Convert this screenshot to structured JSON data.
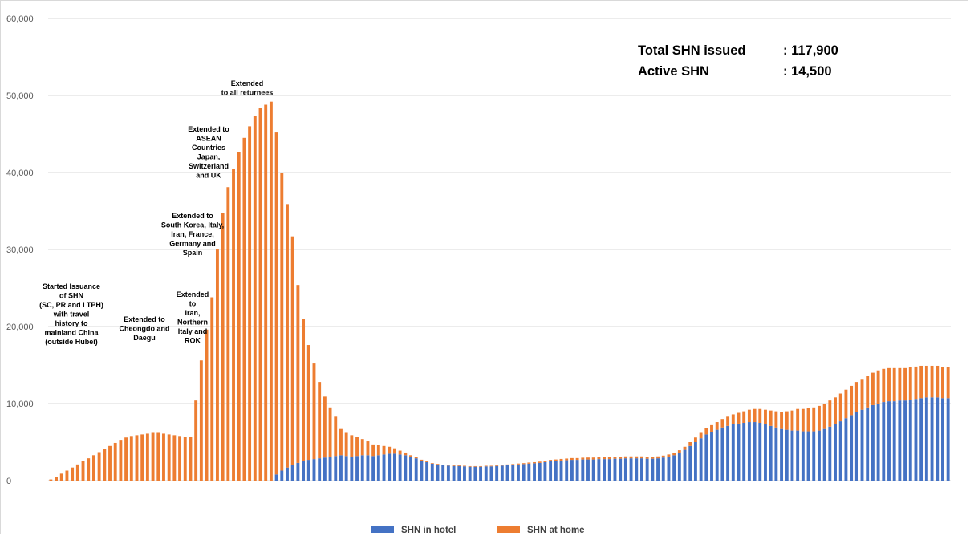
{
  "chart_data": {
    "type": "bar",
    "stacked": true,
    "title": "",
    "xlabel": "",
    "ylabel": "",
    "ylim": [
      0,
      60000
    ],
    "yticks": [
      0,
      10000,
      20000,
      30000,
      40000,
      50000,
      60000
    ],
    "ytick_labels": [
      "0",
      "10,000",
      "20,000",
      "30,000",
      "40,000",
      "50,000",
      "60,000"
    ],
    "grid": true,
    "legend_position": "bottom",
    "colors": {
      "hotel": "#4472c4",
      "home": "#ed7d31",
      "gridline": "#d9d9d9",
      "tick_label": "#595959"
    },
    "series": [
      {
        "name": "SHN in hotel",
        "values": [
          0,
          0,
          0,
          0,
          0,
          0,
          0,
          0,
          0,
          0,
          0,
          0,
          0,
          0,
          0,
          0,
          0,
          0,
          0,
          0,
          0,
          0,
          0,
          0,
          0,
          0,
          0,
          0,
          0,
          0,
          0,
          0,
          0,
          0,
          0,
          0,
          0,
          0,
          0,
          0,
          0,
          0,
          800,
          1300,
          1700,
          2000,
          2300,
          2500,
          2700,
          2800,
          2900,
          3000,
          3100,
          3200,
          3300,
          3200,
          3100,
          3200,
          3300,
          3300,
          3200,
          3300,
          3400,
          3500,
          3500,
          3400,
          3300,
          3100,
          2900,
          2600,
          2400,
          2200,
          2100,
          2000,
          1950,
          1900,
          1900,
          1850,
          1800,
          1800,
          1800,
          1850,
          1850,
          1900,
          1950,
          2000,
          2050,
          2100,
          2150,
          2200,
          2250,
          2300,
          2400,
          2500,
          2550,
          2600,
          2650,
          2700,
          2700,
          2750,
          2750,
          2750,
          2800,
          2800,
          2800,
          2850,
          2850,
          2900,
          2900,
          2900,
          2900,
          2850,
          2850,
          2900,
          3000,
          3100,
          3300,
          3600,
          4000,
          4500,
          5000,
          5500,
          6000,
          6300,
          6600,
          6900,
          7100,
          7300,
          7400,
          7500,
          7600,
          7600,
          7500,
          7300,
          7100,
          6900,
          6700,
          6600,
          6500,
          6500,
          6400,
          6400,
          6400,
          6500,
          6700,
          7000,
          7300,
          7700,
          8100,
          8500,
          8900,
          9200,
          9500,
          9800,
          10000,
          10200,
          10300,
          10300,
          10400,
          10400,
          10500,
          10600,
          10700,
          10800,
          10800,
          10800,
          10700,
          10700
        ]
      },
      {
        "name": "SHN at home",
        "values": [
          150,
          500,
          900,
          1300,
          1700,
          2100,
          2500,
          2900,
          3300,
          3700,
          4100,
          4500,
          4900,
          5300,
          5600,
          5800,
          5900,
          6000,
          6100,
          6200,
          6200,
          6100,
          6000,
          5900,
          5800,
          5700,
          5700,
          10400,
          15600,
          19600,
          23800,
          30100,
          34700,
          38100,
          40500,
          42700,
          44500,
          46000,
          47300,
          48400,
          48800,
          49200,
          44400,
          38700,
          34200,
          29700,
          23100,
          18500,
          14900,
          12400,
          9900,
          7900,
          6400,
          5100,
          3400,
          3000,
          2800,
          2500,
          2100,
          1800,
          1500,
          1300,
          1100,
          900,
          700,
          500,
          350,
          200,
          150,
          120,
          100,
          80,
          80,
          80,
          80,
          80,
          80,
          80,
          80,
          80,
          80,
          80,
          80,
          80,
          80,
          100,
          100,
          120,
          120,
          150,
          150,
          170,
          180,
          200,
          200,
          220,
          220,
          230,
          230,
          230,
          250,
          250,
          250,
          250,
          250,
          250,
          250,
          250,
          250,
          250,
          250,
          250,
          250,
          250,
          250,
          300,
          300,
          350,
          400,
          500,
          600,
          700,
          800,
          900,
          1000,
          1100,
          1200,
          1300,
          1400,
          1500,
          1600,
          1700,
          1800,
          1900,
          2000,
          2100,
          2200,
          2400,
          2600,
          2800,
          2900,
          3000,
          3100,
          3200,
          3300,
          3400,
          3500,
          3600,
          3700,
          3800,
          3900,
          4000,
          4100,
          4200,
          4300,
          4300,
          4300,
          4300,
          4200,
          4200,
          4200,
          4200,
          4200,
          4100,
          4100,
          4100,
          4000,
          4000,
          3900
        ]
      }
    ],
    "annotations": [
      {
        "lines": [
          "Started Issuance",
          "of SHN",
          "(SC, PR and LTPH)",
          "with travel",
          "history to",
          "mainland China",
          "(outside Hubei)"
        ]
      },
      {
        "lines": [
          "Extended to",
          "Cheongdo and",
          "Daegu"
        ]
      },
      {
        "lines": [
          "Extended",
          "to",
          "Iran,",
          "Northern",
          "Italy and",
          "ROK"
        ]
      },
      {
        "lines": [
          "Extended to",
          "South Korea, Italy,",
          "Iran, France,",
          "Germany and",
          "Spain"
        ]
      },
      {
        "lines": [
          "Extended to",
          "ASEAN",
          "Countries",
          "Japan,",
          "Switzerland",
          "and UK"
        ]
      },
      {
        "lines": [
          "Extended",
          "to all returnees"
        ]
      }
    ],
    "summary": {
      "total_label": "Total SHN issued",
      "total_value": ": 117,900",
      "active_label": "Active SHN",
      "active_value": ": 14,500"
    }
  }
}
